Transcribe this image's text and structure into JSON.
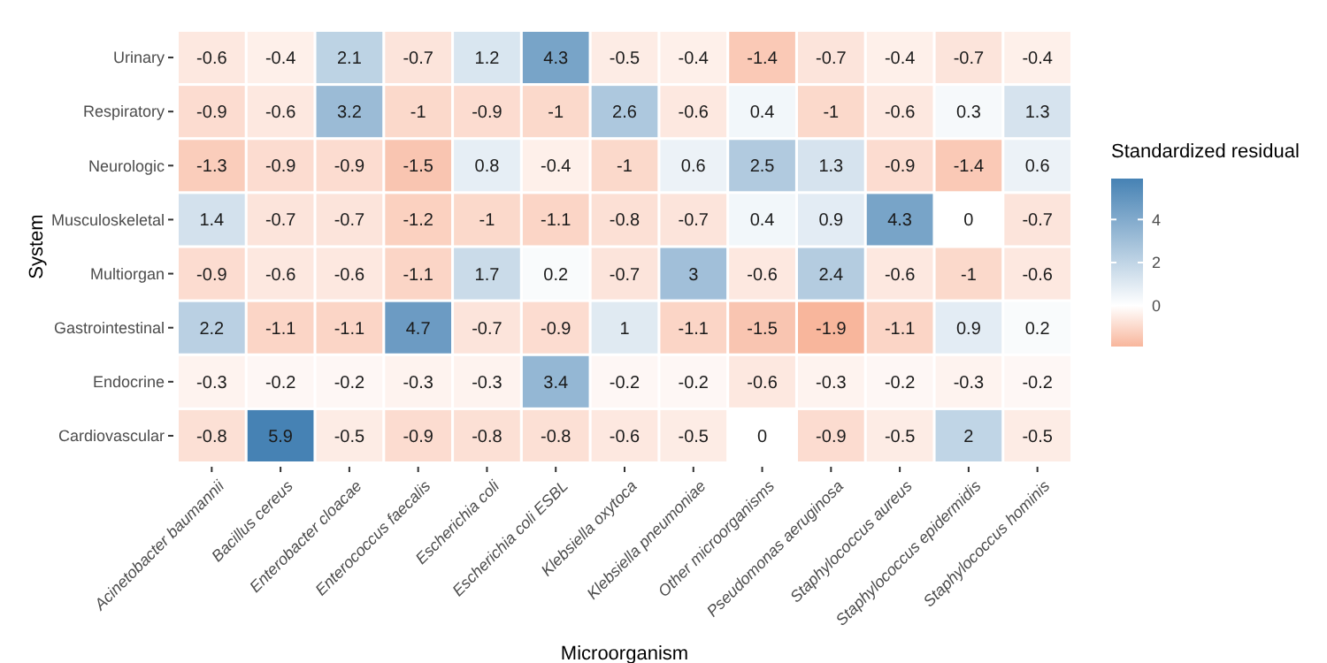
{
  "chart_data": {
    "type": "heatmap",
    "xlabel": "Microorganism",
    "ylabel": "System",
    "clabel": "Standardized residual",
    "categories": [
      "Acinetobacter baumannii",
      "Bacillus cereus",
      "Enterobacter cloacae",
      "Enterococcus faecalis",
      "Escherichia coli",
      "Escherichia coli ESBL",
      "Klebsiella oxytoca",
      "Klebsiella pneumoniae",
      "Other microorganisms",
      "Pseudomonas aeruginosa",
      "Staphylococcus aureus",
      "Staphylococcus epidermidis",
      "Staphylococcus hominis"
    ],
    "y_categories": [
      "Urinary",
      "Respiratory",
      "Neurologic",
      "Musculoskeletal",
      "Multiorgan",
      "Gastrointestinal",
      "Endocrine",
      "Cardiovascular"
    ],
    "cells": [
      [
        -0.6,
        -0.4,
        2.1,
        -0.7,
        1.2,
        4.3,
        -0.5,
        -0.4,
        -1.4,
        -0.7,
        -0.4,
        -0.7,
        -0.4
      ],
      [
        -0.9,
        -0.6,
        3.2,
        -1,
        -0.9,
        -1,
        2.6,
        -0.6,
        0.4,
        -1,
        -0.6,
        0.3,
        1.3
      ],
      [
        -1.3,
        -0.9,
        -0.9,
        -1.5,
        0.8,
        -0.4,
        -1,
        0.6,
        2.5,
        1.3,
        -0.9,
        -1.4,
        0.6
      ],
      [
        1.4,
        -0.7,
        -0.7,
        -1.2,
        -1,
        -1.1,
        -0.8,
        -0.7,
        0.4,
        0.9,
        4.3,
        0,
        -0.7
      ],
      [
        -0.9,
        -0.6,
        -0.6,
        -1.1,
        1.7,
        0.2,
        -0.7,
        3,
        -0.6,
        2.4,
        -0.6,
        -1,
        -0.6
      ],
      [
        2.2,
        -1.1,
        -1.1,
        4.7,
        -0.7,
        -0.9,
        1,
        -1.1,
        -1.5,
        -1.9,
        -1.1,
        0.9,
        0.2
      ],
      [
        -0.3,
        -0.2,
        -0.2,
        -0.3,
        -0.3,
        3.4,
        -0.2,
        -0.2,
        -0.6,
        -0.3,
        -0.2,
        -0.3,
        -0.2
      ],
      [
        -0.8,
        5.9,
        -0.5,
        -0.9,
        -0.8,
        -0.8,
        -0.6,
        -0.5,
        0,
        -0.9,
        -0.5,
        2,
        -0.5
      ]
    ],
    "clim": [
      -1.9,
      5.9
    ],
    "cticks": [
      0,
      2,
      4
    ],
    "colors": [
      "#f8b69c",
      "#ffffff",
      "#4682b4"
    ],
    "data_labels": true
  }
}
